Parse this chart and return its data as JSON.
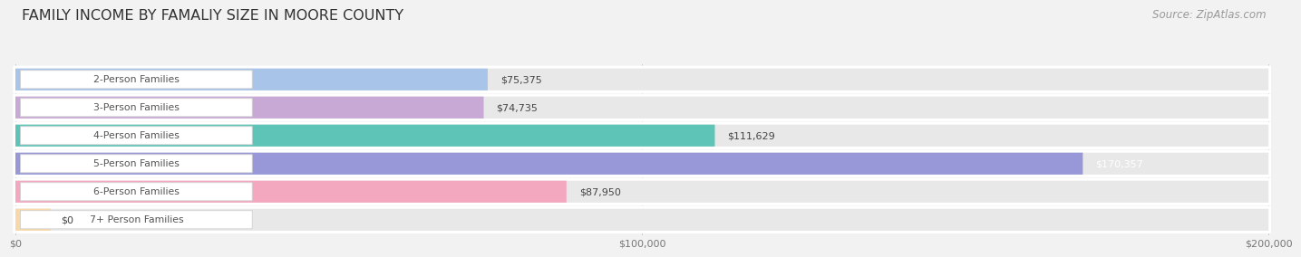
{
  "title": "FAMILY INCOME BY FAMALIY SIZE IN MOORE COUNTY",
  "source": "Source: ZipAtlas.com",
  "categories": [
    "2-Person Families",
    "3-Person Families",
    "4-Person Families",
    "5-Person Families",
    "6-Person Families",
    "7+ Person Families"
  ],
  "values": [
    75375,
    74735,
    111629,
    170357,
    87950,
    0
  ],
  "bar_colors": [
    "#a8c4e8",
    "#c8a8d4",
    "#5ec4b8",
    "#9898d8",
    "#f4a8c0",
    "#f8d8a8"
  ],
  "value_label_colors": [
    "#444444",
    "#444444",
    "#444444",
    "#ffffff",
    "#444444",
    "#444444"
  ],
  "value_labels": [
    "$75,375",
    "$74,735",
    "$111,629",
    "$170,357",
    "$87,950",
    "$0"
  ],
  "xmax": 200000,
  "xticks": [
    0,
    100000,
    200000
  ],
  "xtick_labels": [
    "$0",
    "$100,000",
    "$200,000"
  ],
  "bg_color": "#f2f2f2",
  "row_bg_color": "#ffffff",
  "bar_bg_color": "#e8e8e8",
  "title_fontsize": 11.5,
  "source_fontsize": 8.5,
  "cat_fontsize": 7.8,
  "val_fontsize": 8.0
}
